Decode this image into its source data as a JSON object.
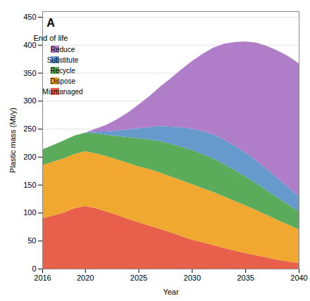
{
  "chart_data": {
    "type": "area",
    "stacked": true,
    "title": "A",
    "xlabel": "Year",
    "ylabel": "Plastic mass (Mt/y)",
    "x": [
      2016,
      2017,
      2018,
      2019,
      2020,
      2021,
      2022,
      2023,
      2024,
      2025,
      2026,
      2027,
      2028,
      2029,
      2030,
      2031,
      2032,
      2033,
      2034,
      2035,
      2036,
      2037,
      2038,
      2039,
      2040
    ],
    "series": [
      {
        "name": "Mismanaged",
        "color": "#e8604c",
        "values": [
          90,
          95,
          100,
          108,
          112,
          108,
          102,
          96,
          89,
          83,
          77,
          71,
          65,
          58,
          52,
          47,
          42,
          37,
          32,
          28,
          24,
          20,
          16,
          13,
          10
        ]
      },
      {
        "name": "Dispose",
        "color": "#f0a830",
        "values": [
          95,
          96,
          97,
          97,
          98,
          98,
          99,
          99,
          100,
          100,
          101,
          101,
          100,
          100,
          99,
          97,
          95,
          92,
          89,
          85,
          81,
          76,
          71,
          66,
          60
        ]
      },
      {
        "name": "Recycle",
        "color": "#5aab5a",
        "values": [
          28,
          30,
          32,
          33,
          33,
          36,
          38,
          42,
          46,
          50,
          53,
          56,
          58,
          60,
          61,
          61,
          60,
          58,
          55,
          52,
          48,
          44,
          40,
          36,
          32
        ]
      },
      {
        "name": "Substitute",
        "color": "#6699cc",
        "values": [
          0,
          0,
          0,
          0,
          0,
          3,
          6,
          10,
          14,
          18,
          22,
          27,
          31,
          35,
          38,
          41,
          43,
          44,
          44,
          43,
          41,
          38,
          35,
          31,
          27
        ]
      },
      {
        "name": "Reduce",
        "color": "#b07ec8",
        "values": [
          0,
          0,
          0,
          0,
          0,
          5,
          12,
          20,
          30,
          42,
          55,
          70,
          86,
          103,
          121,
          138,
          155,
          171,
          185,
          198,
          210,
          220,
          228,
          234,
          238
        ]
      }
    ],
    "xlim": [
      2016,
      2040
    ],
    "ylim": [
      0,
      460
    ],
    "xticks": [
      2016,
      2020,
      2025,
      2030,
      2035,
      2040
    ],
    "yticks": [
      0,
      50,
      100,
      150,
      200,
      250,
      300,
      350,
      400,
      450
    ],
    "grid": "y",
    "legend": "upper left",
    "legend_title": "End of life"
  }
}
